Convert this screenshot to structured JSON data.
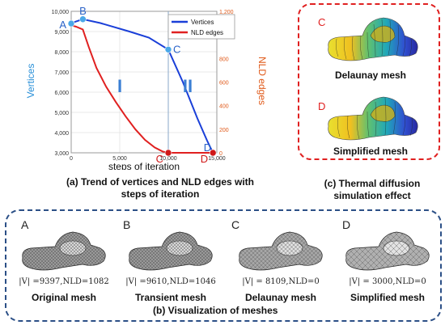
{
  "chart_data": {
    "type": "line",
    "title": "",
    "xlabel": "steps of iteration",
    "ylabel_left": "Vertices",
    "ylabel_right": "NLD edges",
    "xlim": [
      0,
      15000
    ],
    "ylim_left": [
      3000,
      10000
    ],
    "ylim_right": [
      0,
      1200
    ],
    "x_ticks": [
      "0",
      "5,000",
      "10,000",
      "15,000"
    ],
    "y_ticks_left": [
      "3,000",
      "4,000",
      "5,000",
      "6,000",
      "7,000",
      "8,000",
      "9,000",
      "10,000"
    ],
    "y_ticks_right": [
      "0",
      "200",
      "400",
      "600",
      "800",
      "1,000",
      "1,200"
    ],
    "legend_position": "top-right",
    "series": [
      {
        "name": "Vertices",
        "axis": "left",
        "color": "#1a3fd8",
        "points": [
          [
            0,
            9397
          ],
          [
            500,
            9500
          ],
          [
            1200,
            9610
          ],
          [
            3000,
            9420
          ],
          [
            6000,
            9000
          ],
          [
            8000,
            8700
          ],
          [
            10000,
            8109
          ],
          [
            11500,
            6500
          ],
          [
            13000,
            4700
          ],
          [
            14000,
            3600
          ],
          [
            14600,
            3000
          ]
        ]
      },
      {
        "name": "NLD edges",
        "axis": "right",
        "color": "#e02020",
        "points": [
          [
            0,
            1082
          ],
          [
            500,
            1070
          ],
          [
            1200,
            1046
          ],
          [
            1800,
            900
          ],
          [
            2600,
            720
          ],
          [
            3600,
            560
          ],
          [
            4600,
            430
          ],
          [
            5600,
            310
          ],
          [
            6600,
            200
          ],
          [
            7600,
            110
          ],
          [
            8600,
            45
          ],
          [
            9400,
            12
          ],
          [
            10000,
            0
          ],
          [
            12000,
            0
          ],
          [
            14600,
            0
          ]
        ]
      }
    ],
    "vline_x": 10000,
    "point_labels": [
      {
        "label": "A",
        "x": 0,
        "series": "Vertices"
      },
      {
        "label": "B",
        "x": 1200,
        "series": "Vertices"
      },
      {
        "label": "C",
        "x": 10000,
        "series": "Vertices"
      },
      {
        "label": "D",
        "x": 14600,
        "series": "Vertices"
      },
      {
        "label": "C",
        "x": 10000,
        "series": "NLD edges"
      },
      {
        "label": "D",
        "x": 14600,
        "series": "NLD edges"
      }
    ],
    "phase_labels": [
      "I",
      "II"
    ]
  },
  "captions": {
    "a_line1": "(a)  Trend of vertices and NLD edges with",
    "a_line2": "steps of iteration",
    "b": "(b)  Visualization of meshes",
    "c_line1": "(c)  Thermal diffusion",
    "c_line2": "simulation effect"
  },
  "thermal": {
    "letter_top": "C",
    "label_top": "Delaunay mesh",
    "letter_bottom": "D",
    "label_bottom": "Simplified mesh"
  },
  "meshes": [
    {
      "letter": "A",
      "stat": "|V| =9397,NLD=1082",
      "name": "Original mesh"
    },
    {
      "letter": "B",
      "stat": "|V| =9610,NLD=1046",
      "name": "Transient mesh"
    },
    {
      "letter": "C",
      "stat": "|V| = 8109,NLD=0",
      "name": "Delaunay mesh"
    },
    {
      "letter": "D",
      "stat": "|V| = 3000,NLD=0",
      "name": "Simplified mesh"
    }
  ]
}
